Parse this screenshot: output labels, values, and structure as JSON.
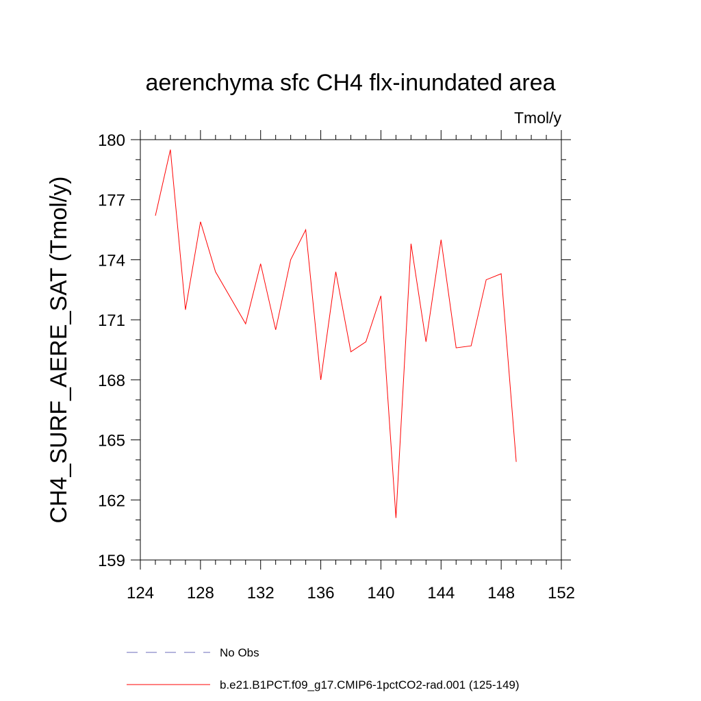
{
  "chart_data": {
    "type": "line",
    "title": "aerenchyma sfc CH4 flx-inundated area",
    "units": "Tmol/y",
    "xlabel": "",
    "ylabel": "CH4_SURF_AERE_SAT  (Tmol/y)",
    "xlim": [
      124,
      152
    ],
    "ylim": [
      159,
      180
    ],
    "xticks": [
      124,
      128,
      132,
      136,
      140,
      144,
      148,
      152
    ],
    "yticks": [
      159,
      162,
      165,
      168,
      171,
      174,
      177,
      180
    ],
    "grid": false,
    "legend_position": "bottom",
    "series": [
      {
        "name": "No Obs",
        "color": "#6a6ab8",
        "dash": "dashed",
        "x": [],
        "y": []
      },
      {
        "name": "b.e21.B1PCT.f09_g17.CMIP6-1pctCO2-rad.001 (125-149)",
        "color": "#ff0000",
        "dash": "solid",
        "x": [
          125,
          126,
          127,
          128,
          129,
          130,
          131,
          132,
          133,
          134,
          135,
          136,
          137,
          138,
          139,
          140,
          141,
          142,
          143,
          144,
          145,
          146,
          147,
          148,
          149
        ],
        "y": [
          176.2,
          179.5,
          171.5,
          175.9,
          173.4,
          172.1,
          170.8,
          173.8,
          170.5,
          174.0,
          175.5,
          168.0,
          173.4,
          169.4,
          169.9,
          172.2,
          161.1,
          174.8,
          169.9,
          175.0,
          169.6,
          169.7,
          173.0,
          173.3,
          163.9
        ]
      }
    ]
  }
}
